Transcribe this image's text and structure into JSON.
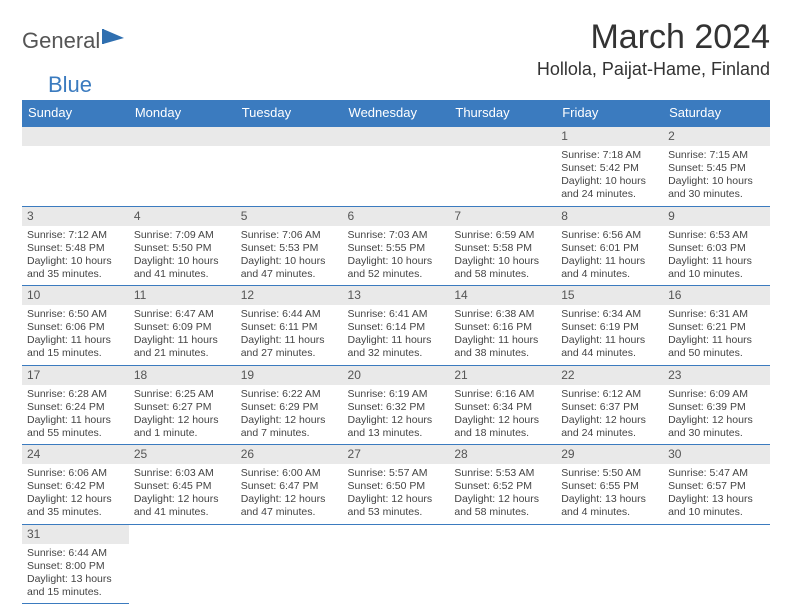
{
  "logo": {
    "part1": "General",
    "part2": "Blue"
  },
  "title": "March 2024",
  "location": "Hollola, Paijat-Hame, Finland",
  "day_headers": [
    "Sunday",
    "Monday",
    "Tuesday",
    "Wednesday",
    "Thursday",
    "Friday",
    "Saturday"
  ],
  "colors": {
    "header_bg": "#3b7bbf",
    "header_fg": "#ffffff",
    "daynum_bg": "#e9e9e9",
    "border": "#3b7bbf",
    "text": "#444444"
  },
  "weeks": [
    [
      null,
      null,
      null,
      null,
      null,
      {
        "n": "1",
        "sr": "Sunrise: 7:18 AM",
        "ss": "Sunset: 5:42 PM",
        "dl": "Daylight: 10 hours and 24 minutes."
      },
      {
        "n": "2",
        "sr": "Sunrise: 7:15 AM",
        "ss": "Sunset: 5:45 PM",
        "dl": "Daylight: 10 hours and 30 minutes."
      }
    ],
    [
      {
        "n": "3",
        "sr": "Sunrise: 7:12 AM",
        "ss": "Sunset: 5:48 PM",
        "dl": "Daylight: 10 hours and 35 minutes."
      },
      {
        "n": "4",
        "sr": "Sunrise: 7:09 AM",
        "ss": "Sunset: 5:50 PM",
        "dl": "Daylight: 10 hours and 41 minutes."
      },
      {
        "n": "5",
        "sr": "Sunrise: 7:06 AM",
        "ss": "Sunset: 5:53 PM",
        "dl": "Daylight: 10 hours and 47 minutes."
      },
      {
        "n": "6",
        "sr": "Sunrise: 7:03 AM",
        "ss": "Sunset: 5:55 PM",
        "dl": "Daylight: 10 hours and 52 minutes."
      },
      {
        "n": "7",
        "sr": "Sunrise: 6:59 AM",
        "ss": "Sunset: 5:58 PM",
        "dl": "Daylight: 10 hours and 58 minutes."
      },
      {
        "n": "8",
        "sr": "Sunrise: 6:56 AM",
        "ss": "Sunset: 6:01 PM",
        "dl": "Daylight: 11 hours and 4 minutes."
      },
      {
        "n": "9",
        "sr": "Sunrise: 6:53 AM",
        "ss": "Sunset: 6:03 PM",
        "dl": "Daylight: 11 hours and 10 minutes."
      }
    ],
    [
      {
        "n": "10",
        "sr": "Sunrise: 6:50 AM",
        "ss": "Sunset: 6:06 PM",
        "dl": "Daylight: 11 hours and 15 minutes."
      },
      {
        "n": "11",
        "sr": "Sunrise: 6:47 AM",
        "ss": "Sunset: 6:09 PM",
        "dl": "Daylight: 11 hours and 21 minutes."
      },
      {
        "n": "12",
        "sr": "Sunrise: 6:44 AM",
        "ss": "Sunset: 6:11 PM",
        "dl": "Daylight: 11 hours and 27 minutes."
      },
      {
        "n": "13",
        "sr": "Sunrise: 6:41 AM",
        "ss": "Sunset: 6:14 PM",
        "dl": "Daylight: 11 hours and 32 minutes."
      },
      {
        "n": "14",
        "sr": "Sunrise: 6:38 AM",
        "ss": "Sunset: 6:16 PM",
        "dl": "Daylight: 11 hours and 38 minutes."
      },
      {
        "n": "15",
        "sr": "Sunrise: 6:34 AM",
        "ss": "Sunset: 6:19 PM",
        "dl": "Daylight: 11 hours and 44 minutes."
      },
      {
        "n": "16",
        "sr": "Sunrise: 6:31 AM",
        "ss": "Sunset: 6:21 PM",
        "dl": "Daylight: 11 hours and 50 minutes."
      }
    ],
    [
      {
        "n": "17",
        "sr": "Sunrise: 6:28 AM",
        "ss": "Sunset: 6:24 PM",
        "dl": "Daylight: 11 hours and 55 minutes."
      },
      {
        "n": "18",
        "sr": "Sunrise: 6:25 AM",
        "ss": "Sunset: 6:27 PM",
        "dl": "Daylight: 12 hours and 1 minute."
      },
      {
        "n": "19",
        "sr": "Sunrise: 6:22 AM",
        "ss": "Sunset: 6:29 PM",
        "dl": "Daylight: 12 hours and 7 minutes."
      },
      {
        "n": "20",
        "sr": "Sunrise: 6:19 AM",
        "ss": "Sunset: 6:32 PM",
        "dl": "Daylight: 12 hours and 13 minutes."
      },
      {
        "n": "21",
        "sr": "Sunrise: 6:16 AM",
        "ss": "Sunset: 6:34 PM",
        "dl": "Daylight: 12 hours and 18 minutes."
      },
      {
        "n": "22",
        "sr": "Sunrise: 6:12 AM",
        "ss": "Sunset: 6:37 PM",
        "dl": "Daylight: 12 hours and 24 minutes."
      },
      {
        "n": "23",
        "sr": "Sunrise: 6:09 AM",
        "ss": "Sunset: 6:39 PM",
        "dl": "Daylight: 12 hours and 30 minutes."
      }
    ],
    [
      {
        "n": "24",
        "sr": "Sunrise: 6:06 AM",
        "ss": "Sunset: 6:42 PM",
        "dl": "Daylight: 12 hours and 35 minutes."
      },
      {
        "n": "25",
        "sr": "Sunrise: 6:03 AM",
        "ss": "Sunset: 6:45 PM",
        "dl": "Daylight: 12 hours and 41 minutes."
      },
      {
        "n": "26",
        "sr": "Sunrise: 6:00 AM",
        "ss": "Sunset: 6:47 PM",
        "dl": "Daylight: 12 hours and 47 minutes."
      },
      {
        "n": "27",
        "sr": "Sunrise: 5:57 AM",
        "ss": "Sunset: 6:50 PM",
        "dl": "Daylight: 12 hours and 53 minutes."
      },
      {
        "n": "28",
        "sr": "Sunrise: 5:53 AM",
        "ss": "Sunset: 6:52 PM",
        "dl": "Daylight: 12 hours and 58 minutes."
      },
      {
        "n": "29",
        "sr": "Sunrise: 5:50 AM",
        "ss": "Sunset: 6:55 PM",
        "dl": "Daylight: 13 hours and 4 minutes."
      },
      {
        "n": "30",
        "sr": "Sunrise: 5:47 AM",
        "ss": "Sunset: 6:57 PM",
        "dl": "Daylight: 13 hours and 10 minutes."
      }
    ],
    [
      {
        "n": "31",
        "sr": "Sunrise: 6:44 AM",
        "ss": "Sunset: 8:00 PM",
        "dl": "Daylight: 13 hours and 15 minutes."
      },
      null,
      null,
      null,
      null,
      null,
      null
    ]
  ]
}
